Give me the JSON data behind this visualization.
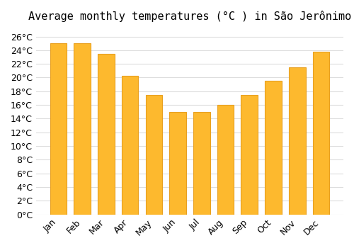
{
  "title": "Average monthly temperatures (°C ) in São Jerônimo",
  "months": [
    "Jan",
    "Feb",
    "Mar",
    "Apr",
    "May",
    "Jun",
    "Jul",
    "Aug",
    "Sep",
    "Oct",
    "Nov",
    "Dec"
  ],
  "values": [
    25.0,
    25.0,
    23.5,
    20.3,
    17.5,
    15.0,
    15.0,
    16.0,
    17.5,
    19.5,
    21.5,
    23.8
  ],
  "bar_color": "#FDB92E",
  "bar_edge_color": "#E8A020",
  "background_color": "#FFFFFF",
  "grid_color": "#DDDDDD",
  "ylim": [
    0,
    27
  ],
  "ytick_step": 2,
  "title_fontsize": 11,
  "tick_fontsize": 9,
  "xlabel_rotation": 45
}
